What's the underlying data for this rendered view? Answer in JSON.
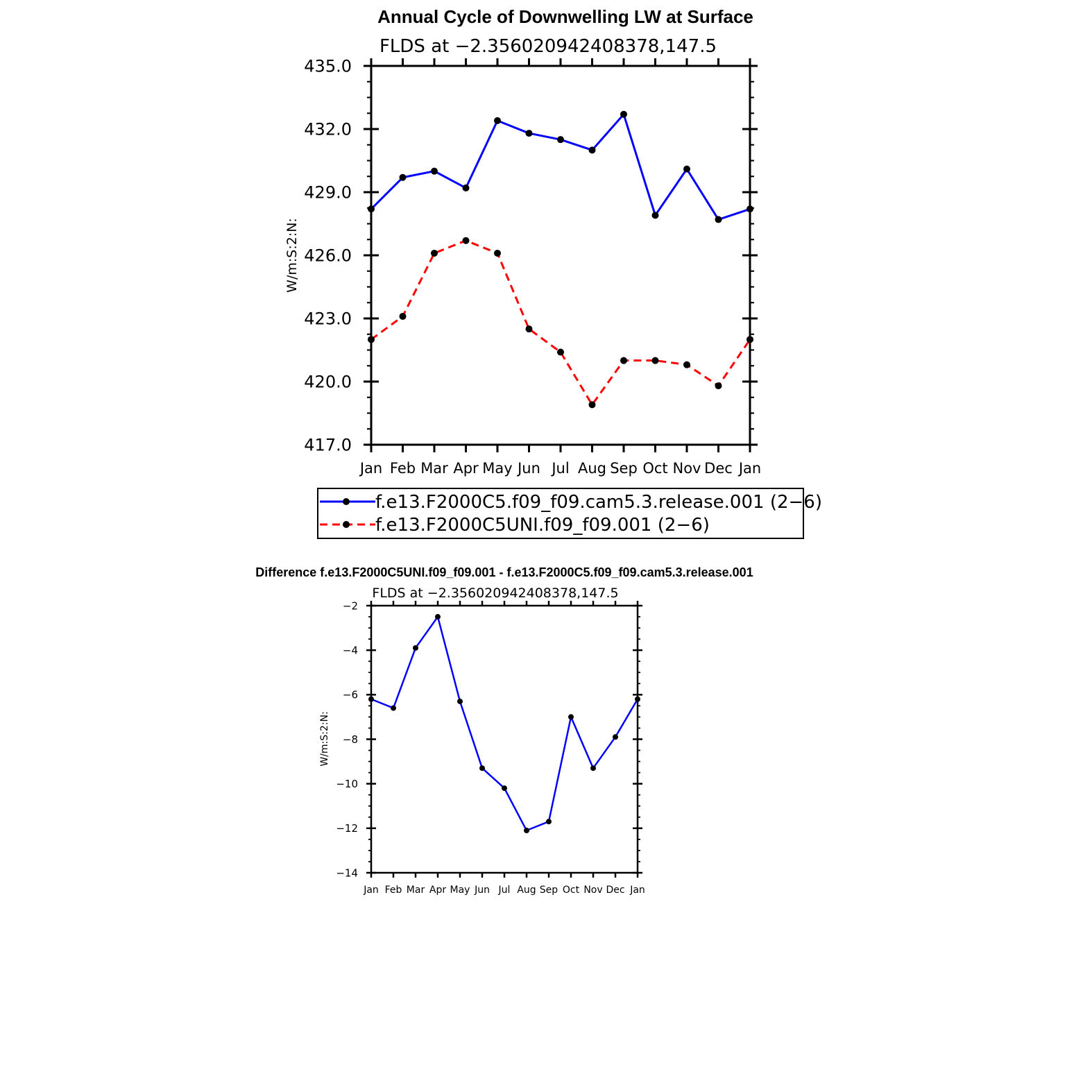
{
  "chart_data": [
    {
      "type": "line",
      "title": "Annual Cycle of Downwelling LW at Surface",
      "subtitle": "FLDS at −2.356020942408378,147.5",
      "xlabel": "",
      "ylabel": "W/m:S:2:N:",
      "categories": [
        "Jan",
        "Feb",
        "Mar",
        "Apr",
        "May",
        "Jun",
        "Jul",
        "Aug",
        "Sep",
        "Oct",
        "Nov",
        "Dec",
        "Jan"
      ],
      "ylim": [
        417.0,
        435.0
      ],
      "yticks": [
        417.0,
        420.0,
        423.0,
        426.0,
        429.0,
        432.0,
        435.0
      ],
      "ytick_labels": [
        "417.0",
        "420.0",
        "423.0",
        "426.0",
        "429.0",
        "432.0",
        "435.0"
      ],
      "grid": false,
      "legend_position": "bottom",
      "series": [
        {
          "name": "f.e13.F2000C5.f09_f09.cam5.3.release.001 (2−6)",
          "color": "#0000ff",
          "dash": "solid",
          "values": [
            428.2,
            429.7,
            430.0,
            429.2,
            432.4,
            431.8,
            431.5,
            431.0,
            432.7,
            427.9,
            430.1,
            427.7,
            428.2
          ]
        },
        {
          "name": "f.e13.F2000C5UNI.f09_f09.001 (2−6)",
          "color": "#ff0000",
          "dash": "dashed",
          "values": [
            422.0,
            423.1,
            426.1,
            426.7,
            426.1,
            422.5,
            421.4,
            418.9,
            421.0,
            421.0,
            420.8,
            419.8,
            422.0
          ]
        }
      ]
    },
    {
      "type": "line",
      "title": "Difference f.e13.F2000C5UNI.f09_f09.001 - f.e13.F2000C5.f09_f09.cam5.3.release.001",
      "subtitle": "FLDS at −2.356020942408378,147.5",
      "xlabel": "",
      "ylabel": "W/m:S:2:N:",
      "categories": [
        "Jan",
        "Feb",
        "Mar",
        "Apr",
        "May",
        "Jun",
        "Jul",
        "Aug",
        "Sep",
        "Oct",
        "Nov",
        "Dec",
        "Jan"
      ],
      "ylim": [
        -14,
        -2
      ],
      "yticks": [
        -14,
        -12,
        -10,
        -8,
        -6,
        -4,
        -2
      ],
      "ytick_labels": [
        "−14",
        "−12",
        "−10",
        "−8",
        "−6",
        "−4",
        "−2"
      ],
      "grid": false,
      "series": [
        {
          "color": "#0000ff",
          "dash": "solid",
          "values": [
            -6.2,
            -6.6,
            -3.9,
            -2.5,
            -6.3,
            -9.3,
            -10.2,
            -12.1,
            -11.7,
            -7.0,
            -9.3,
            -7.9,
            -6.2
          ]
        }
      ]
    }
  ]
}
